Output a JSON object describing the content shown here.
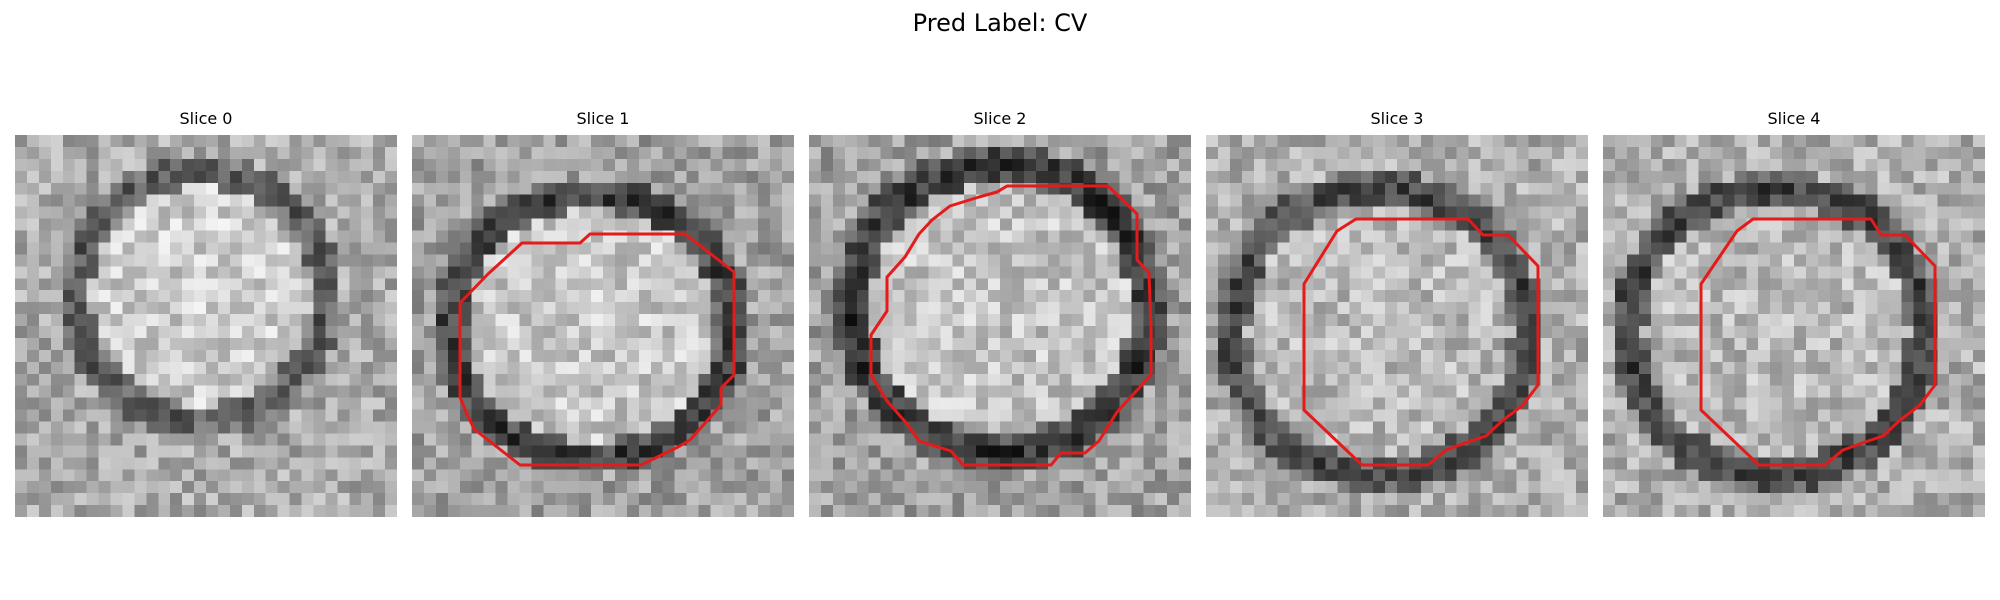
{
  "figure": {
    "title": "Pred Label: CV"
  },
  "colors": {
    "contour": "#e51a1a",
    "background": "#ffffff"
  },
  "panels": [
    {
      "title": "Slice 0",
      "has_contour": false
    },
    {
      "title": "Slice 1",
      "has_contour": true
    },
    {
      "title": "Slice 2",
      "has_contour": true
    },
    {
      "title": "Slice 3",
      "has_contour": true
    },
    {
      "title": "Slice 4",
      "has_contour": true
    }
  ]
}
